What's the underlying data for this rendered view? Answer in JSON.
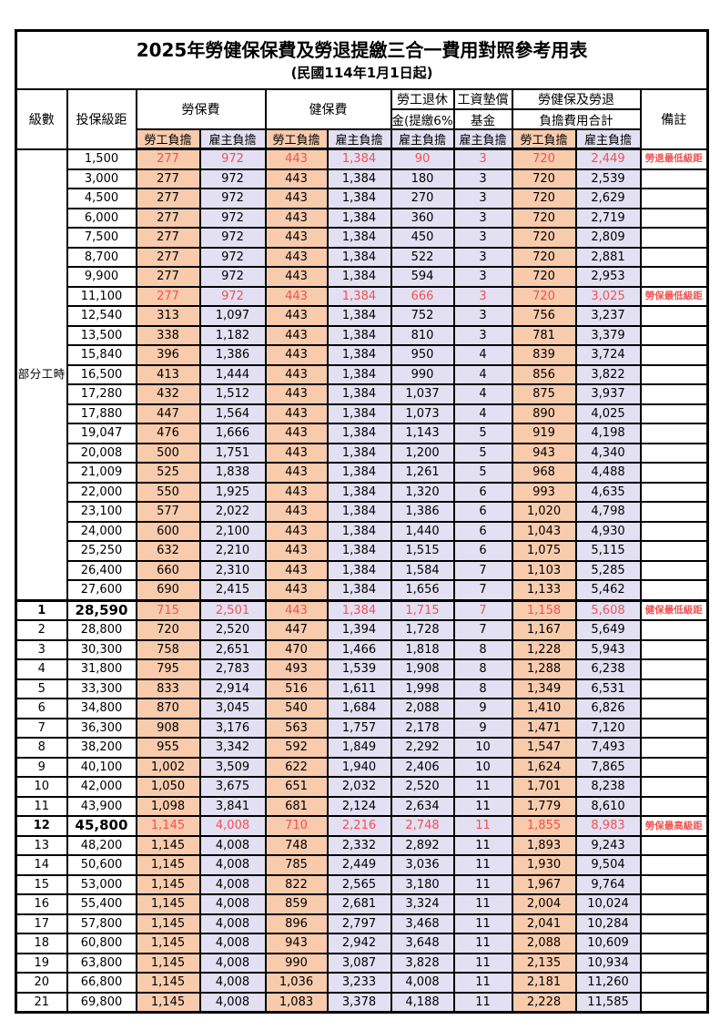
{
  "table": {
    "title": "2025年勞健保保費及勞退提繳三合一費用對照參考用表",
    "subtitle": "(民國114年1月1日起)",
    "colors": {
      "employee_bg": "#F8CBAD",
      "employer_bg": "#E2E0F2",
      "highlight_text": "#F05252",
      "border": "#000000",
      "text": "#000000"
    },
    "header": {
      "level": "級數",
      "range": "投保級距",
      "labor": "勞保費",
      "health": "健保費",
      "pension_line1": "勞工退休",
      "pension_line2": "金(提繳6%)",
      "fund_line1": "工資墊償",
      "fund_line2": "基金",
      "total_line1": "勞健保及勞退",
      "total_line2": "負擔費用合計",
      "note": "備註",
      "employee": "勞工負擔",
      "employer": "雇主負擔"
    },
    "part_time_label": "部分工時",
    "part_time_rowspan": 23,
    "group_separator_index": 23,
    "rows": [
      {
        "level": "",
        "range": "1,500",
        "labor_ee": "277",
        "labor_er": "972",
        "health_ee": "443",
        "health_er": "1,384",
        "pension_er": "90",
        "fund_er": "3",
        "total_ee": "720",
        "total_er": "2,449",
        "note": "勞退最低級距",
        "highlight": true,
        "bold": false
      },
      {
        "level": "",
        "range": "3,000",
        "labor_ee": "277",
        "labor_er": "972",
        "health_ee": "443",
        "health_er": "1,384",
        "pension_er": "180",
        "fund_er": "3",
        "total_ee": "720",
        "total_er": "2,539",
        "note": "",
        "highlight": false,
        "bold": false
      },
      {
        "level": "",
        "range": "4,500",
        "labor_ee": "277",
        "labor_er": "972",
        "health_ee": "443",
        "health_er": "1,384",
        "pension_er": "270",
        "fund_er": "3",
        "total_ee": "720",
        "total_er": "2,629",
        "note": "",
        "highlight": false,
        "bold": false
      },
      {
        "level": "",
        "range": "6,000",
        "labor_ee": "277",
        "labor_er": "972",
        "health_ee": "443",
        "health_er": "1,384",
        "pension_er": "360",
        "fund_er": "3",
        "total_ee": "720",
        "total_er": "2,719",
        "note": "",
        "highlight": false,
        "bold": false
      },
      {
        "level": "",
        "range": "7,500",
        "labor_ee": "277",
        "labor_er": "972",
        "health_ee": "443",
        "health_er": "1,384",
        "pension_er": "450",
        "fund_er": "3",
        "total_ee": "720",
        "total_er": "2,809",
        "note": "",
        "highlight": false,
        "bold": false
      },
      {
        "level": "",
        "range": "8,700",
        "labor_ee": "277",
        "labor_er": "972",
        "health_ee": "443",
        "health_er": "1,384",
        "pension_er": "522",
        "fund_er": "3",
        "total_ee": "720",
        "total_er": "2,881",
        "note": "",
        "highlight": false,
        "bold": false
      },
      {
        "level": "",
        "range": "9,900",
        "labor_ee": "277",
        "labor_er": "972",
        "health_ee": "443",
        "health_er": "1,384",
        "pension_er": "594",
        "fund_er": "3",
        "total_ee": "720",
        "total_er": "2,953",
        "note": "",
        "highlight": false,
        "bold": false
      },
      {
        "level": "",
        "range": "11,100",
        "labor_ee": "277",
        "labor_er": "972",
        "health_ee": "443",
        "health_er": "1,384",
        "pension_er": "666",
        "fund_er": "3",
        "total_ee": "720",
        "total_er": "3,025",
        "note": "勞保最低級距",
        "highlight": true,
        "bold": false
      },
      {
        "level": "",
        "range": "12,540",
        "labor_ee": "313",
        "labor_er": "1,097",
        "health_ee": "443",
        "health_er": "1,384",
        "pension_er": "752",
        "fund_er": "3",
        "total_ee": "756",
        "total_er": "3,237",
        "note": "",
        "highlight": false,
        "bold": false
      },
      {
        "level": "",
        "range": "13,500",
        "labor_ee": "338",
        "labor_er": "1,182",
        "health_ee": "443",
        "health_er": "1,384",
        "pension_er": "810",
        "fund_er": "3",
        "total_ee": "781",
        "total_er": "3,379",
        "note": "",
        "highlight": false,
        "bold": false
      },
      {
        "level": "",
        "range": "15,840",
        "labor_ee": "396",
        "labor_er": "1,386",
        "health_ee": "443",
        "health_er": "1,384",
        "pension_er": "950",
        "fund_er": "4",
        "total_ee": "839",
        "total_er": "3,724",
        "note": "",
        "highlight": false,
        "bold": false
      },
      {
        "level": "",
        "range": "16,500",
        "labor_ee": "413",
        "labor_er": "1,444",
        "health_ee": "443",
        "health_er": "1,384",
        "pension_er": "990",
        "fund_er": "4",
        "total_ee": "856",
        "total_er": "3,822",
        "note": "",
        "highlight": false,
        "bold": false
      },
      {
        "level": "",
        "range": "17,280",
        "labor_ee": "432",
        "labor_er": "1,512",
        "health_ee": "443",
        "health_er": "1,384",
        "pension_er": "1,037",
        "fund_er": "4",
        "total_ee": "875",
        "total_er": "3,937",
        "note": "",
        "highlight": false,
        "bold": false
      },
      {
        "level": "",
        "range": "17,880",
        "labor_ee": "447",
        "labor_er": "1,564",
        "health_ee": "443",
        "health_er": "1,384",
        "pension_er": "1,073",
        "fund_er": "4",
        "total_ee": "890",
        "total_er": "4,025",
        "note": "",
        "highlight": false,
        "bold": false
      },
      {
        "level": "",
        "range": "19,047",
        "labor_ee": "476",
        "labor_er": "1,666",
        "health_ee": "443",
        "health_er": "1,384",
        "pension_er": "1,143",
        "fund_er": "5",
        "total_ee": "919",
        "total_er": "4,198",
        "note": "",
        "highlight": false,
        "bold": false
      },
      {
        "level": "",
        "range": "20,008",
        "labor_ee": "500",
        "labor_er": "1,751",
        "health_ee": "443",
        "health_er": "1,384",
        "pension_er": "1,200",
        "fund_er": "5",
        "total_ee": "943",
        "total_er": "4,340",
        "note": "",
        "highlight": false,
        "bold": false
      },
      {
        "level": "",
        "range": "21,009",
        "labor_ee": "525",
        "labor_er": "1,838",
        "health_ee": "443",
        "health_er": "1,384",
        "pension_er": "1,261",
        "fund_er": "5",
        "total_ee": "968",
        "total_er": "4,488",
        "note": "",
        "highlight": false,
        "bold": false
      },
      {
        "level": "",
        "range": "22,000",
        "labor_ee": "550",
        "labor_er": "1,925",
        "health_ee": "443",
        "health_er": "1,384",
        "pension_er": "1,320",
        "fund_er": "6",
        "total_ee": "993",
        "total_er": "4,635",
        "note": "",
        "highlight": false,
        "bold": false
      },
      {
        "level": "",
        "range": "23,100",
        "labor_ee": "577",
        "labor_er": "2,022",
        "health_ee": "443",
        "health_er": "1,384",
        "pension_er": "1,386",
        "fund_er": "6",
        "total_ee": "1,020",
        "total_er": "4,798",
        "note": "",
        "highlight": false,
        "bold": false
      },
      {
        "level": "",
        "range": "24,000",
        "labor_ee": "600",
        "labor_er": "2,100",
        "health_ee": "443",
        "health_er": "1,384",
        "pension_er": "1,440",
        "fund_er": "6",
        "total_ee": "1,043",
        "total_er": "4,930",
        "note": "",
        "highlight": false,
        "bold": false
      },
      {
        "level": "",
        "range": "25,250",
        "labor_ee": "632",
        "labor_er": "2,210",
        "health_ee": "443",
        "health_er": "1,384",
        "pension_er": "1,515",
        "fund_er": "6",
        "total_ee": "1,075",
        "total_er": "5,115",
        "note": "",
        "highlight": false,
        "bold": false
      },
      {
        "level": "",
        "range": "26,400",
        "labor_ee": "660",
        "labor_er": "2,310",
        "health_ee": "443",
        "health_er": "1,384",
        "pension_er": "1,584",
        "fund_er": "7",
        "total_ee": "1,103",
        "total_er": "5,285",
        "note": "",
        "highlight": false,
        "bold": false
      },
      {
        "level": "",
        "range": "27,600",
        "labor_ee": "690",
        "labor_er": "2,415",
        "health_ee": "443",
        "health_er": "1,384",
        "pension_er": "1,656",
        "fund_er": "7",
        "total_ee": "1,133",
        "total_er": "5,462",
        "note": "",
        "highlight": false,
        "bold": false
      },
      {
        "level": "1",
        "range": "28,590",
        "labor_ee": "715",
        "labor_er": "2,501",
        "health_ee": "443",
        "health_er": "1,384",
        "pension_er": "1,715",
        "fund_er": "7",
        "total_ee": "1,158",
        "total_er": "5,608",
        "note": "健保最低級距",
        "highlight": true,
        "bold": true
      },
      {
        "level": "2",
        "range": "28,800",
        "labor_ee": "720",
        "labor_er": "2,520",
        "health_ee": "447",
        "health_er": "1,394",
        "pension_er": "1,728",
        "fund_er": "7",
        "total_ee": "1,167",
        "total_er": "5,649",
        "note": "",
        "highlight": false,
        "bold": false
      },
      {
        "level": "3",
        "range": "30,300",
        "labor_ee": "758",
        "labor_er": "2,651",
        "health_ee": "470",
        "health_er": "1,466",
        "pension_er": "1,818",
        "fund_er": "8",
        "total_ee": "1,228",
        "total_er": "5,943",
        "note": "",
        "highlight": false,
        "bold": false
      },
      {
        "level": "4",
        "range": "31,800",
        "labor_ee": "795",
        "labor_er": "2,783",
        "health_ee": "493",
        "health_er": "1,539",
        "pension_er": "1,908",
        "fund_er": "8",
        "total_ee": "1,288",
        "total_er": "6,238",
        "note": "",
        "highlight": false,
        "bold": false
      },
      {
        "level": "5",
        "range": "33,300",
        "labor_ee": "833",
        "labor_er": "2,914",
        "health_ee": "516",
        "health_er": "1,611",
        "pension_er": "1,998",
        "fund_er": "8",
        "total_ee": "1,349",
        "total_er": "6,531",
        "note": "",
        "highlight": false,
        "bold": false
      },
      {
        "level": "6",
        "range": "34,800",
        "labor_ee": "870",
        "labor_er": "3,045",
        "health_ee": "540",
        "health_er": "1,684",
        "pension_er": "2,088",
        "fund_er": "9",
        "total_ee": "1,410",
        "total_er": "6,826",
        "note": "",
        "highlight": false,
        "bold": false
      },
      {
        "level": "7",
        "range": "36,300",
        "labor_ee": "908",
        "labor_er": "3,176",
        "health_ee": "563",
        "health_er": "1,757",
        "pension_er": "2,178",
        "fund_er": "9",
        "total_ee": "1,471",
        "total_er": "7,120",
        "note": "",
        "highlight": false,
        "bold": false
      },
      {
        "level": "8",
        "range": "38,200",
        "labor_ee": "955",
        "labor_er": "3,342",
        "health_ee": "592",
        "health_er": "1,849",
        "pension_er": "2,292",
        "fund_er": "10",
        "total_ee": "1,547",
        "total_er": "7,493",
        "note": "",
        "highlight": false,
        "bold": false
      },
      {
        "level": "9",
        "range": "40,100",
        "labor_ee": "1,002",
        "labor_er": "3,509",
        "health_ee": "622",
        "health_er": "1,940",
        "pension_er": "2,406",
        "fund_er": "10",
        "total_ee": "1,624",
        "total_er": "7,865",
        "note": "",
        "highlight": false,
        "bold": false
      },
      {
        "level": "10",
        "range": "42,000",
        "labor_ee": "1,050",
        "labor_er": "3,675",
        "health_ee": "651",
        "health_er": "2,032",
        "pension_er": "2,520",
        "fund_er": "11",
        "total_ee": "1,701",
        "total_er": "8,238",
        "note": "",
        "highlight": false,
        "bold": false
      },
      {
        "level": "11",
        "range": "43,900",
        "labor_ee": "1,098",
        "labor_er": "3,841",
        "health_ee": "681",
        "health_er": "2,124",
        "pension_er": "2,634",
        "fund_er": "11",
        "total_ee": "1,779",
        "total_er": "8,610",
        "note": "",
        "highlight": false,
        "bold": false
      },
      {
        "level": "12",
        "range": "45,800",
        "labor_ee": "1,145",
        "labor_er": "4,008",
        "health_ee": "710",
        "health_er": "2,216",
        "pension_er": "2,748",
        "fund_er": "11",
        "total_ee": "1,855",
        "total_er": "8,983",
        "note": "勞保最高級距",
        "highlight": true,
        "bold": true
      },
      {
        "level": "13",
        "range": "48,200",
        "labor_ee": "1,145",
        "labor_er": "4,008",
        "health_ee": "748",
        "health_er": "2,332",
        "pension_er": "2,892",
        "fund_er": "11",
        "total_ee": "1,893",
        "total_er": "9,243",
        "note": "",
        "highlight": false,
        "bold": false
      },
      {
        "level": "14",
        "range": "50,600",
        "labor_ee": "1,145",
        "labor_er": "4,008",
        "health_ee": "785",
        "health_er": "2,449",
        "pension_er": "3,036",
        "fund_er": "11",
        "total_ee": "1,930",
        "total_er": "9,504",
        "note": "",
        "highlight": false,
        "bold": false
      },
      {
        "level": "15",
        "range": "53,000",
        "labor_ee": "1,145",
        "labor_er": "4,008",
        "health_ee": "822",
        "health_er": "2,565",
        "pension_er": "3,180",
        "fund_er": "11",
        "total_ee": "1,967",
        "total_er": "9,764",
        "note": "",
        "highlight": false,
        "bold": false
      },
      {
        "level": "16",
        "range": "55,400",
        "labor_ee": "1,145",
        "labor_er": "4,008",
        "health_ee": "859",
        "health_er": "2,681",
        "pension_er": "3,324",
        "fund_er": "11",
        "total_ee": "2,004",
        "total_er": "10,024",
        "note": "",
        "highlight": false,
        "bold": false
      },
      {
        "level": "17",
        "range": "57,800",
        "labor_ee": "1,145",
        "labor_er": "4,008",
        "health_ee": "896",
        "health_er": "2,797",
        "pension_er": "3,468",
        "fund_er": "11",
        "total_ee": "2,041",
        "total_er": "10,284",
        "note": "",
        "highlight": false,
        "bold": false
      },
      {
        "level": "18",
        "range": "60,800",
        "labor_ee": "1,145",
        "labor_er": "4,008",
        "health_ee": "943",
        "health_er": "2,942",
        "pension_er": "3,648",
        "fund_er": "11",
        "total_ee": "2,088",
        "total_er": "10,609",
        "note": "",
        "highlight": false,
        "bold": false
      },
      {
        "level": "19",
        "range": "63,800",
        "labor_ee": "1,145",
        "labor_er": "4,008",
        "health_ee": "990",
        "health_er": "3,087",
        "pension_er": "3,828",
        "fund_er": "11",
        "total_ee": "2,135",
        "total_er": "10,934",
        "note": "",
        "highlight": false,
        "bold": false
      },
      {
        "level": "20",
        "range": "66,800",
        "labor_ee": "1,145",
        "labor_er": "4,008",
        "health_ee": "1,036",
        "health_er": "3,233",
        "pension_er": "4,008",
        "fund_er": "11",
        "total_ee": "2,181",
        "total_er": "11,260",
        "note": "",
        "highlight": false,
        "bold": false
      },
      {
        "level": "21",
        "range": "69,800",
        "labor_ee": "1,145",
        "labor_er": "4,008",
        "health_ee": "1,083",
        "health_er": "3,378",
        "pension_er": "4,188",
        "fund_er": "11",
        "total_ee": "2,228",
        "total_er": "11,585",
        "note": "",
        "highlight": false,
        "bold": false
      }
    ]
  }
}
